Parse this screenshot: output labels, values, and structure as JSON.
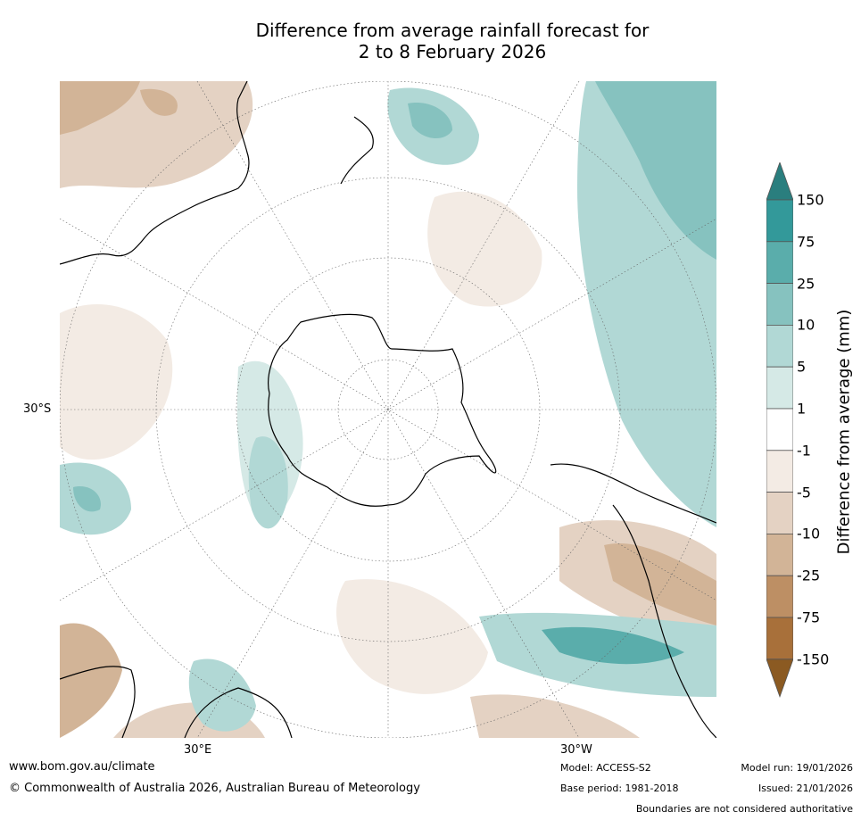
{
  "title": {
    "line1": "Difference from average rainfall forecast for",
    "line2": "2 to 8 February 2026"
  },
  "map": {
    "latitude_label": "30°S",
    "longitude_labels": {
      "left": "30°E",
      "right": "30°W"
    },
    "palette": {
      "ocean_neutral": "#ffffff",
      "coast": "#000000",
      "graticule": "#666666"
    }
  },
  "colorbar": {
    "label": "Difference from average (mm)",
    "ticks": [
      "150",
      "75",
      "25",
      "10",
      "5",
      "1",
      "-1",
      "-5",
      "-10",
      "-25",
      "-75",
      "-150"
    ],
    "colors_top_to_bottom": [
      "#2a7e7e",
      "#33999a",
      "#5aadab",
      "#86c2bf",
      "#b1d8d5",
      "#d5e9e6",
      "#ffffff",
      "#f3ebe4",
      "#e4d2c3",
      "#d2b497",
      "#bd8f64",
      "#a8703a",
      "#8b5a22"
    ]
  },
  "footer": {
    "website": "www.bom.gov.au/climate",
    "copyright": "© Commonwealth of Australia 2026, Australian Bureau of Meteorology",
    "model": "Model: ACCESS-S2",
    "base_period": "Base period: 1981-2018",
    "model_run": "Model run: 19/01/2026",
    "issued": "Issued: 21/01/2026",
    "disclaimer": "Boundaries are not considered authoritative"
  }
}
